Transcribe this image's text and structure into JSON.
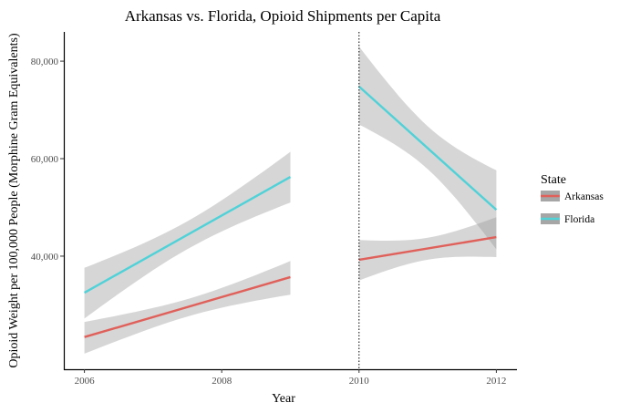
{
  "chart_data": {
    "type": "line",
    "title": "Arkansas vs. Florida, Opioid Shipments per Capita",
    "xlabel": "Year",
    "ylabel": "Opioid Weight per 100,000 People (Morphine Gram Equivalents)",
    "xlim": [
      2005.7,
      2012.3
    ],
    "ylim": [
      16800,
      86000
    ],
    "xticks": [
      2006,
      2008,
      2010,
      2012
    ],
    "xtick_labels": [
      "2006",
      "2008",
      "2010",
      "2012"
    ],
    "yticks": [
      40000,
      60000,
      80000
    ],
    "ytick_labels": [
      "40,000",
      "60,000",
      "80,000"
    ],
    "grid": false,
    "vline": {
      "x": 2010,
      "style": "dotted"
    },
    "legend": {
      "title": "State",
      "placement": "right",
      "entries": [
        "Arkansas",
        "Florida"
      ]
    },
    "series": [
      {
        "name": "Arkansas",
        "color": "#e0605a",
        "segments": [
          {
            "x": [
              2006,
              2009
            ],
            "y": [
              23400,
              35700
            ],
            "ci_upper": [
              26500,
              39000
            ],
            "ci_lower": [
              20000,
              32100
            ]
          },
          {
            "x": [
              2010,
              2012
            ],
            "y": [
              39250,
              43900
            ],
            "ci_upper": [
              43300,
              48000
            ],
            "ci_lower": [
              35000,
              39800
            ]
          }
        ]
      },
      {
        "name": "Florida",
        "color": "#4fd2d8",
        "segments": [
          {
            "x": [
              2006,
              2009
            ],
            "y": [
              32500,
              56250
            ],
            "ci_upper": [
              37600,
              61400
            ],
            "ci_lower": [
              27200,
              51000
            ]
          },
          {
            "x": [
              2010,
              2012
            ],
            "y": [
              74800,
              49500
            ],
            "ci_upper": [
              83000,
              57600
            ],
            "ci_lower": [
              67000,
              41400
            ]
          }
        ]
      }
    ],
    "ci_color": "#999999"
  }
}
